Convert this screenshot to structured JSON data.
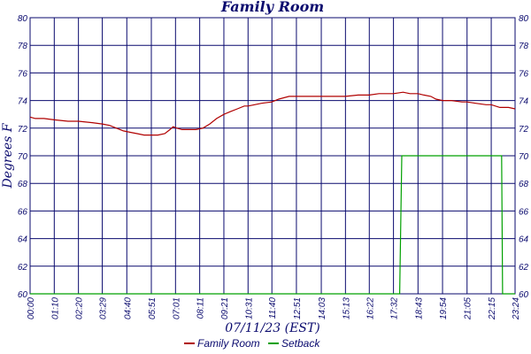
{
  "chart_data": {
    "type": "line",
    "title": "Family Room",
    "xlabel": "07/11/23 (EST)",
    "ylabel": "Degrees F",
    "ylim": [
      60,
      80
    ],
    "yticks": [
      60,
      62,
      64,
      66,
      68,
      70,
      72,
      74,
      76,
      78,
      80
    ],
    "xlim_minutes": [
      0,
      1404
    ],
    "xticks": [
      "00:00",
      "01:10",
      "02:20",
      "03:29",
      "04:40",
      "05:51",
      "07:01",
      "08:11",
      "09:21",
      "10:31",
      "11:40",
      "12:51",
      "14:03",
      "15:13",
      "16:22",
      "17:32",
      "18:43",
      "19:54",
      "21:05",
      "22:15",
      "23:24"
    ],
    "xtick_minutes": [
      0,
      70,
      140,
      209,
      280,
      351,
      421,
      491,
      561,
      631,
      700,
      771,
      843,
      913,
      982,
      1052,
      1123,
      1194,
      1265,
      1335,
      1404
    ],
    "grid": true,
    "legend_position": "bottom-center",
    "series": [
      {
        "name": "Family Room",
        "color": "#b00000",
        "points": [
          [
            0,
            72.8
          ],
          [
            15,
            72.7
          ],
          [
            40,
            72.7
          ],
          [
            70,
            72.6
          ],
          [
            110,
            72.5
          ],
          [
            140,
            72.5
          ],
          [
            180,
            72.4
          ],
          [
            209,
            72.3
          ],
          [
            230,
            72.2
          ],
          [
            250,
            72.0
          ],
          [
            270,
            71.8
          ],
          [
            290,
            71.7
          ],
          [
            310,
            71.6
          ],
          [
            330,
            71.5
          ],
          [
            351,
            71.5
          ],
          [
            370,
            71.5
          ],
          [
            390,
            71.6
          ],
          [
            405,
            71.9
          ],
          [
            414,
            72.1
          ],
          [
            425,
            72.0
          ],
          [
            440,
            71.9
          ],
          [
            460,
            71.9
          ],
          [
            480,
            71.9
          ],
          [
            500,
            72.0
          ],
          [
            520,
            72.3
          ],
          [
            540,
            72.7
          ],
          [
            561,
            73.0
          ],
          [
            580,
            73.2
          ],
          [
            600,
            73.4
          ],
          [
            620,
            73.6
          ],
          [
            631,
            73.6
          ],
          [
            650,
            73.7
          ],
          [
            670,
            73.8
          ],
          [
            700,
            73.9
          ],
          [
            720,
            74.1
          ],
          [
            750,
            74.3
          ],
          [
            771,
            74.3
          ],
          [
            800,
            74.3
          ],
          [
            843,
            74.3
          ],
          [
            880,
            74.3
          ],
          [
            913,
            74.3
          ],
          [
            950,
            74.4
          ],
          [
            982,
            74.4
          ],
          [
            1010,
            74.5
          ],
          [
            1030,
            74.5
          ],
          [
            1052,
            74.5
          ],
          [
            1080,
            74.6
          ],
          [
            1100,
            74.5
          ],
          [
            1123,
            74.5
          ],
          [
            1140,
            74.4
          ],
          [
            1160,
            74.3
          ],
          [
            1175,
            74.1
          ],
          [
            1194,
            74.0
          ],
          [
            1220,
            74.0
          ],
          [
            1250,
            73.9
          ],
          [
            1265,
            73.9
          ],
          [
            1290,
            73.8
          ],
          [
            1320,
            73.7
          ],
          [
            1335,
            73.7
          ],
          [
            1360,
            73.5
          ],
          [
            1385,
            73.5
          ],
          [
            1404,
            73.4
          ]
        ]
      },
      {
        "name": "Setback",
        "color": "#00a000",
        "points": [
          [
            0,
            60
          ],
          [
            1070,
            60
          ],
          [
            1073,
            65
          ],
          [
            1076,
            70
          ],
          [
            1365,
            70
          ],
          [
            1368,
            60
          ],
          [
            1404,
            60
          ]
        ]
      }
    ]
  }
}
